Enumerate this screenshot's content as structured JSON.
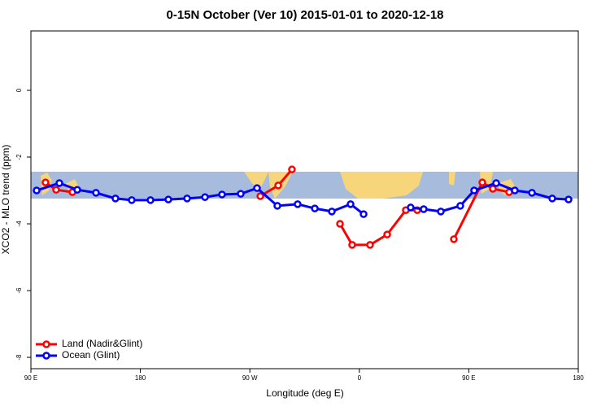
{
  "chart_data": {
    "type": "line",
    "title": "0-15N October (Ver 10)   2015-01-01 to 2020-12-18",
    "x_label": "Longitude (deg E)",
    "y_label": "XCO2 - MLO trend (ppm)",
    "xlim": [
      90,
      540
    ],
    "xticks": [
      {
        "value": 90,
        "label": "90 E"
      },
      180,
      {
        "value": 270,
        "label": "90 W"
      },
      {
        "value": 360,
        "label": "0"
      },
      {
        "value": 450,
        "label": "90 E"
      },
      {
        "value": 540,
        "label": "180"
      }
    ],
    "ylim": [
      -8.34,
      1.78
    ],
    "yticks": [
      0,
      -2,
      -4,
      -6,
      -8
    ],
    "legend": "bottom-left",
    "series": [
      {
        "name": "Land (Nadir&Glint)",
        "color": "#ff0000",
        "x": [
          102,
          110.7,
          124.1,
          null,
          278.6,
          293.3,
          304.6,
          null,
          344.1,
          354.1,
          368.8,
          382.9,
          398.2,
          407.6,
          null,
          437.7,
          461.1,
          469.8,
          483.2
        ],
        "values": [
          -2.76,
          -2.98,
          -3.05,
          null,
          -3.17,
          -2.85,
          -2.37,
          null,
          -4.0,
          -4.63,
          -4.63,
          -4.32,
          -3.59,
          -3.59,
          null,
          -4.46,
          -2.76,
          -2.95,
          -3.05
        ]
      },
      {
        "name": "Ocean (Glint)",
        "color": "#0000ff",
        "x": [
          94.7,
          113.4,
          128.1,
          143.5,
          159.5,
          172.9,
          188.3,
          203.0,
          218.4,
          233.1,
          247.1,
          262.5,
          275.9,
          292.6,
          309.3,
          323.4,
          337.4,
          352.8,
          363.5,
          null,
          402.2,
          412.9,
          427.0,
          443.0,
          454.4,
          472.5,
          487.8,
          501.9,
          518.6,
          532.0
        ],
        "values": [
          -3.0,
          -2.78,
          -2.98,
          -3.07,
          -3.24,
          -3.29,
          -3.29,
          -3.27,
          -3.24,
          -3.2,
          -3.12,
          -3.1,
          -2.93,
          -3.46,
          -3.41,
          -3.54,
          -3.63,
          -3.41,
          -3.71,
          null,
          -3.51,
          -3.56,
          -3.63,
          -3.46,
          -3.0,
          -2.78,
          -3.0,
          -3.07,
          -3.24,
          -3.27
        ]
      }
    ]
  }
}
